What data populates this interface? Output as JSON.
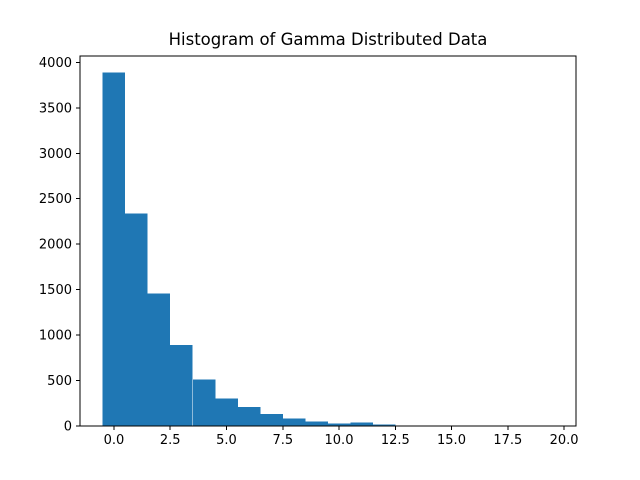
{
  "figure": {
    "background": "#ffffff"
  },
  "chart_data": {
    "type": "bar",
    "subtype": "histogram",
    "title": "Histogram of Gamma Distributed Data",
    "xlabel": "",
    "ylabel": "",
    "bar_color": "#1f77b4",
    "axis_color": "#000000",
    "text_color": "#000000",
    "grid": false,
    "legend_position": "none",
    "bin_edges": [
      -0.5,
      0.5,
      1.5,
      2.5,
      3.5,
      4.5,
      5.5,
      6.5,
      7.5,
      8.5,
      9.5,
      10.5,
      11.5,
      12.5
    ],
    "values": [
      3890,
      2340,
      1460,
      890,
      510,
      300,
      210,
      130,
      85,
      50,
      28,
      40,
      15
    ],
    "xlim": [
      -1.51,
      20.53
    ],
    "ylim": [
      0,
      4070
    ],
    "x_ticks": [
      0.0,
      2.5,
      5.0,
      7.5,
      10.0,
      12.5,
      15.0,
      17.5,
      20.0
    ],
    "x_tick_labels": [
      "0.0",
      "2.5",
      "5.0",
      "7.5",
      "10.0",
      "12.5",
      "15.0",
      "17.5",
      "20.0"
    ],
    "y_ticks": [
      0,
      500,
      1000,
      1500,
      2000,
      2500,
      3000,
      3500,
      4000
    ],
    "y_tick_labels": [
      "0",
      "500",
      "1000",
      "1500",
      "2000",
      "2500",
      "3000",
      "3500",
      "4000"
    ]
  }
}
